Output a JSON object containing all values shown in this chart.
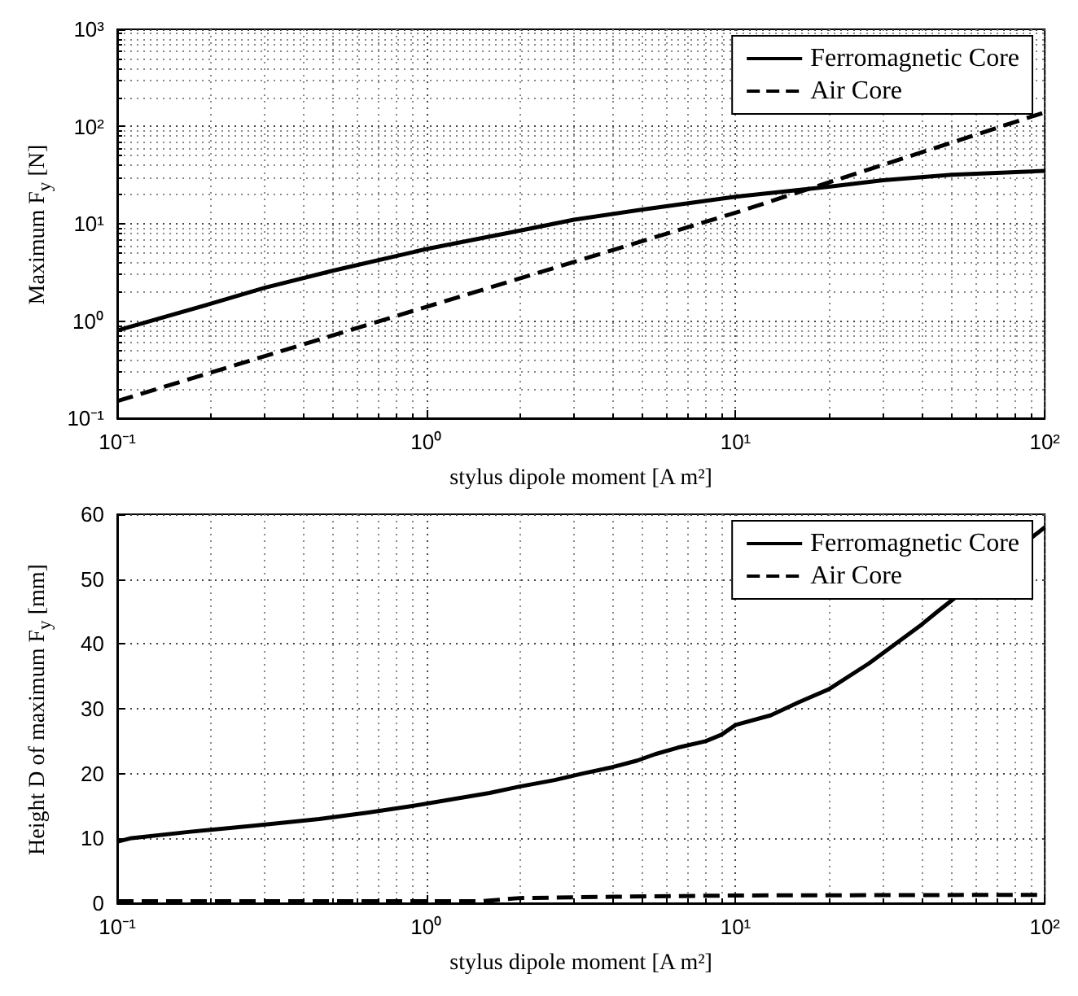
{
  "chart_data": [
    {
      "type": "line",
      "ylabel": "Maximum F$_{y}$ [N]",
      "xlabel": "stylus dipole moment [A m²]",
      "log": "xy",
      "grid": true,
      "legend": "top right",
      "marker": "none",
      "xlim": [
        0.1,
        100
      ],
      "xticks": [
        {
          "value": 0.1,
          "label": "10⁻¹"
        },
        {
          "value": 1,
          "label": "10⁰"
        },
        {
          "value": 10,
          "label": "10¹"
        },
        {
          "value": 100,
          "label": "10²"
        }
      ],
      "ylim": [
        0.1,
        1000
      ],
      "yticks": [
        {
          "value": 0.1,
          "label": "10⁻¹"
        },
        {
          "value": 1,
          "label": "10⁰"
        },
        {
          "value": 10,
          "label": "10¹"
        },
        {
          "value": 100,
          "label": "10²"
        },
        {
          "value": 1000,
          "label": "10³"
        }
      ],
      "series": [
        {
          "name": "Ferromagnetic Core",
          "color": "#000000",
          "line_style": "solid",
          "x": [
            0.1,
            0.2,
            0.3,
            0.5,
            1,
            2,
            3,
            5,
            10,
            20,
            30,
            50,
            100
          ],
          "values": [
            0.8,
            1.5,
            2.2,
            3.3,
            5.5,
            8.5,
            11,
            14,
            19,
            24,
            28,
            32,
            35
          ]
        },
        {
          "name": "Air Core",
          "color": "#000000",
          "line_style": "dashed",
          "x": [
            0.1,
            1,
            10,
            100
          ],
          "values": [
            0.15,
            1.4,
            13,
            140
          ]
        }
      ]
    },
    {
      "type": "line",
      "ylabel": "Height D of maximum F$_{y}$ [mm]",
      "xlabel": "stylus dipole moment [A m²]",
      "log": "x",
      "grid": true,
      "legend": "top right",
      "marker": "none",
      "xlim": [
        0.1,
        100
      ],
      "xticks": [
        {
          "value": 0.1,
          "label": "10⁻¹"
        },
        {
          "value": 1,
          "label": "10⁰"
        },
        {
          "value": 10,
          "label": "10¹"
        },
        {
          "value": 100,
          "label": "10²"
        }
      ],
      "ylim": [
        0,
        60
      ],
      "yticks": [
        0,
        10,
        20,
        30,
        40,
        50,
        60
      ],
      "series": [
        {
          "name": "Ferromagnetic Core",
          "color": "#000000",
          "line_style": "solid",
          "x": [
            0.1,
            0.11,
            0.17,
            0.28,
            0.45,
            0.65,
            0.9,
            1.2,
            1.6,
            2,
            2.6,
            3.2,
            4,
            4.8,
            5.5,
            6.5,
            8,
            9,
            10,
            13,
            16,
            20,
            27,
            40,
            45,
            100
          ],
          "values": [
            9.5,
            10,
            11,
            12,
            13,
            14,
            15,
            16,
            17,
            18,
            19,
            20,
            21,
            22,
            23,
            24,
            25,
            26,
            27.5,
            29,
            31,
            33,
            37,
            43,
            45,
            58
          ]
        },
        {
          "name": "Air Core",
          "color": "#000000",
          "line_style": "dashed",
          "x": [
            0.1,
            1.5,
            2,
            4,
            10,
            100
          ],
          "values": [
            0.3,
            0.3,
            0.8,
            1,
            1.2,
            1.3
          ]
        }
      ]
    }
  ]
}
